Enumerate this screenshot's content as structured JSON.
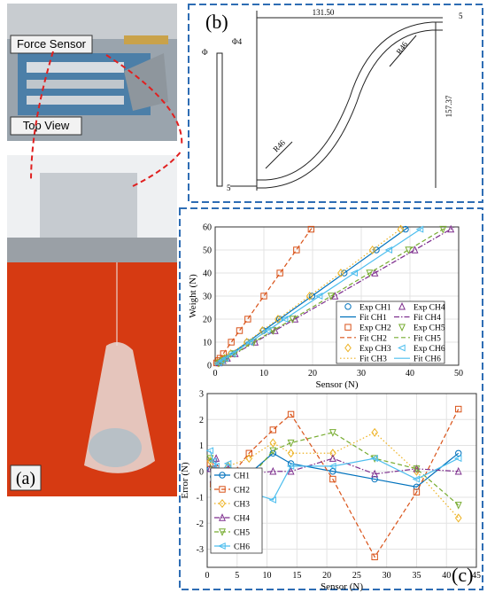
{
  "panels": {
    "a": "(a)",
    "b": "(b)",
    "c": "(c)",
    "force_sensor": "Force Sensor",
    "top_view": "Top View"
  },
  "drawing": {
    "width": "131.50",
    "top_gap": "5",
    "radius_top": "R46",
    "radius_bottom": "R46",
    "height": "157.37",
    "diameter": "Φ4",
    "diameter_small": "Φ",
    "bottom_gap": "5"
  },
  "chart_data": [
    {
      "type": "scatter",
      "xlabel": "Sensor (N)",
      "ylabel": "Weight (N)",
      "xlim": [
        0,
        50
      ],
      "ylim": [
        0,
        60
      ],
      "xticks": [
        0,
        10,
        20,
        30,
        40,
        50
      ],
      "yticks": [
        0,
        10,
        20,
        30,
        40,
        50,
        60
      ],
      "grid": true,
      "series": [
        {
          "name": "Exp CH1",
          "color": "#0072bd",
          "marker": "circle",
          "x": [
            0.7,
            1.3,
            2,
            3.3,
            6.6,
            9.9,
            13.2,
            19.9,
            26.5,
            33.1,
            39.1
          ],
          "values": [
            1,
            2,
            3,
            5,
            10,
            15,
            20,
            30,
            40,
            50,
            59
          ]
        },
        {
          "name": "Fit CH1",
          "color": "#0072bd",
          "dash": "solid",
          "x": [
            0,
            39.5
          ],
          "values": [
            0,
            59.6
          ]
        },
        {
          "name": "Exp CH2",
          "color": "#d95319",
          "marker": "square",
          "x": [
            0.3,
            0.7,
            1,
            1.7,
            3.3,
            5,
            6.7,
            10,
            13.3,
            16.7,
            19.7
          ],
          "values": [
            1,
            2,
            3,
            5,
            10,
            15,
            20,
            30,
            40,
            50,
            59
          ]
        },
        {
          "name": "Fit CH2",
          "color": "#d95319",
          "dash": "dashed",
          "x": [
            0,
            20
          ],
          "values": [
            0,
            60
          ]
        },
        {
          "name": "Exp CH3",
          "color": "#edb120",
          "marker": "diamond",
          "x": [
            0.6,
            1.3,
            1.9,
            3.2,
            6.5,
            9.7,
            12.9,
            19.4,
            25.8,
            32.3,
            38.1
          ],
          "values": [
            1,
            2,
            3,
            5,
            10,
            15,
            20,
            30,
            40,
            50,
            59
          ]
        },
        {
          "name": "Fit CH3",
          "color": "#edb120",
          "dash": "dotted",
          "x": [
            0,
            38.5
          ],
          "values": [
            0,
            59.7
          ]
        },
        {
          "name": "Exp CH4",
          "color": "#7e2f8e",
          "marker": "tri-up",
          "x": [
            0.8,
            1.6,
            2.5,
            4.1,
            8.2,
            12.3,
            16.4,
            24.6,
            32.8,
            41,
            48.4
          ],
          "values": [
            1,
            2,
            3,
            5,
            10,
            15,
            20,
            30,
            40,
            50,
            59
          ]
        },
        {
          "name": "Fit CH4",
          "color": "#7e2f8e",
          "dash": "dashdot",
          "x": [
            0,
            49
          ],
          "values": [
            0,
            59.8
          ]
        },
        {
          "name": "Exp CH5",
          "color": "#77ac30",
          "marker": "tri-down",
          "x": [
            0.8,
            1.6,
            2.4,
            4,
            7.9,
            11.9,
            15.9,
            23.8,
            31.7,
            39.7,
            46.8
          ],
          "values": [
            1,
            2,
            3,
            5,
            10,
            15,
            20,
            30,
            40,
            50,
            59
          ]
        },
        {
          "name": "Fit CH5",
          "color": "#77ac30",
          "dash": "dashed",
          "x": [
            0,
            47.5
          ],
          "values": [
            0,
            59.9
          ]
        },
        {
          "name": "Exp CH6",
          "color": "#4dbeee",
          "marker": "tri-left",
          "x": [
            0.7,
            1.4,
            2.1,
            3.6,
            7.1,
            10.7,
            14.3,
            21.4,
            28.6,
            35.7,
            42.1
          ],
          "values": [
            1,
            2,
            3,
            5,
            10,
            15,
            20,
            30,
            40,
            50,
            59
          ]
        },
        {
          "name": "Fit CH6",
          "color": "#4dbeee",
          "dash": "solid",
          "x": [
            0,
            42.5
          ],
          "values": [
            0,
            59.5
          ]
        }
      ]
    },
    {
      "type": "line",
      "xlabel": "Sensor (N)",
      "ylabel": "Error (N)",
      "xlim": [
        0,
        45
      ],
      "ylim": [
        -3.7,
        3
      ],
      "xticks": [
        0,
        5,
        10,
        15,
        20,
        25,
        30,
        35,
        40,
        45
      ],
      "yticks": [
        -3,
        -2,
        -1,
        0,
        1,
        2,
        3
      ],
      "grid": true,
      "x": [
        0.5,
        1,
        1.5,
        2,
        3.5,
        7,
        11,
        14,
        21,
        28,
        35,
        42
      ],
      "series": [
        {
          "name": "CH1",
          "color": "#0072bd",
          "marker": "circle",
          "dash": "solid",
          "values": [
            0.1,
            -0.2,
            0,
            -0.3,
            0,
            -0.1,
            0.7,
            0.3,
            0,
            -0.3,
            -0.6,
            0.7
          ]
        },
        {
          "name": "CH2",
          "color": "#d95319",
          "marker": "square",
          "dash": "dashed",
          "values": [
            0.3,
            -0.5,
            0.1,
            -0.9,
            -0.3,
            0.7,
            1.6,
            2.2,
            -0.3,
            -3.3,
            -0.8,
            2.4
          ]
        },
        {
          "name": "CH3",
          "color": "#edb120",
          "marker": "diamond",
          "dash": "dotted",
          "values": [
            0.4,
            -0.7,
            -0.4,
            -0.6,
            0.2,
            0.5,
            1.1,
            0.7,
            0.7,
            1.5,
            0,
            -1.8
          ]
        },
        {
          "name": "CH4",
          "color": "#7e2f8e",
          "marker": "tri-up",
          "dash": "dashdot",
          "values": [
            0.1,
            -0.3,
            0.5,
            -0.2,
            0.1,
            -0.1,
            0,
            0,
            0.5,
            -0.1,
            0.1,
            0
          ]
        },
        {
          "name": "CH5",
          "color": "#77ac30",
          "marker": "tri-down",
          "dash": "dashed",
          "values": [
            0.5,
            -0.8,
            -0.9,
            -0.8,
            -0.5,
            -0.3,
            0.8,
            1.1,
            1.5,
            0.5,
            0.1,
            -1.3
          ]
        },
        {
          "name": "CH6",
          "color": "#4dbeee",
          "marker": "tri-left",
          "dash": "solid",
          "values": [
            0.8,
            0.4,
            0.2,
            -0.1,
            0.3,
            -0.8,
            -1.1,
            0.2,
            0.2,
            0.5,
            -0.3,
            0.5
          ]
        }
      ]
    }
  ]
}
